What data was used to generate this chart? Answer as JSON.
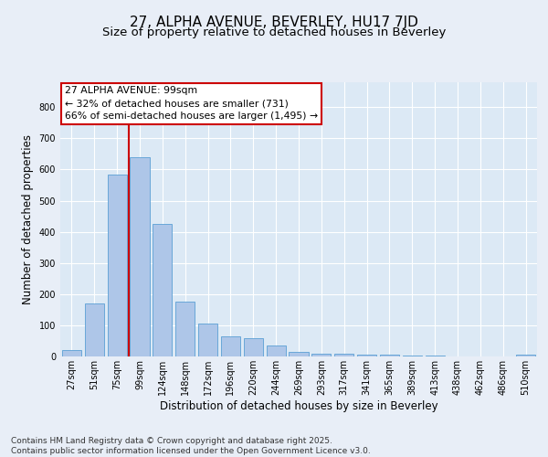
{
  "title": "27, ALPHA AVENUE, BEVERLEY, HU17 7JD",
  "subtitle": "Size of property relative to detached houses in Beverley",
  "xlabel": "Distribution of detached houses by size in Beverley",
  "ylabel": "Number of detached properties",
  "categories": [
    "27sqm",
    "51sqm",
    "75sqm",
    "99sqm",
    "124sqm",
    "148sqm",
    "172sqm",
    "196sqm",
    "220sqm",
    "244sqm",
    "269sqm",
    "293sqm",
    "317sqm",
    "341sqm",
    "365sqm",
    "389sqm",
    "413sqm",
    "438sqm",
    "462sqm",
    "486sqm",
    "510sqm"
  ],
  "values": [
    20,
    170,
    585,
    640,
    425,
    175,
    105,
    65,
    60,
    35,
    15,
    10,
    10,
    5,
    5,
    3,
    3,
    0,
    0,
    0,
    5
  ],
  "bar_color": "#aec6e8",
  "bar_edge_color": "#5a9fd4",
  "red_line_index": 3,
  "annotation_line1": "27 ALPHA AVENUE: 99sqm",
  "annotation_line2": "← 32% of detached houses are smaller (731)",
  "annotation_line3": "66% of semi-detached houses are larger (1,495) →",
  "annotation_box_color": "#ffffff",
  "annotation_box_edge": "#cc0000",
  "red_line_color": "#cc0000",
  "ylim": [
    0,
    880
  ],
  "yticks": [
    0,
    100,
    200,
    300,
    400,
    500,
    600,
    700,
    800
  ],
  "background_color": "#e8eef7",
  "plot_bg_color": "#dce9f5",
  "footer_line1": "Contains HM Land Registry data © Crown copyright and database right 2025.",
  "footer_line2": "Contains public sector information licensed under the Open Government Licence v3.0.",
  "title_fontsize": 11,
  "subtitle_fontsize": 9.5,
  "axis_label_fontsize": 8.5,
  "tick_fontsize": 7,
  "annotation_fontsize": 7.8,
  "footer_fontsize": 6.5
}
